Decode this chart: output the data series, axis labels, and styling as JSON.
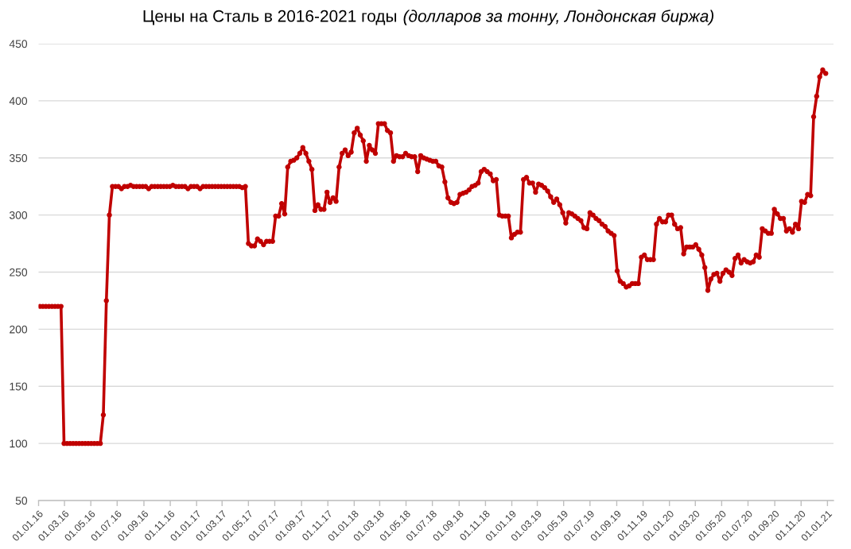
{
  "chart_data": {
    "type": "line",
    "title": "Цены на Сталь в 2016-2021 годы",
    "subtitle": "(долларов за тонну, Лондонская биржа)",
    "x": [
      "2016-01-04",
      "2016-01-11",
      "2016-01-18",
      "2016-01-25",
      "2016-02-01",
      "2016-02-08",
      "2016-02-15",
      "2016-02-22",
      "2016-02-29",
      "2016-03-07",
      "2016-03-14",
      "2016-03-21",
      "2016-03-28",
      "2016-04-04",
      "2016-04-11",
      "2016-04-18",
      "2016-04-25",
      "2016-05-02",
      "2016-05-09",
      "2016-05-16",
      "2016-05-23",
      "2016-05-30",
      "2016-06-06",
      "2016-06-13",
      "2016-06-20",
      "2016-06-27",
      "2016-07-04",
      "2016-07-11",
      "2016-07-18",
      "2016-07-25",
      "2016-08-01",
      "2016-08-08",
      "2016-08-15",
      "2016-08-22",
      "2016-08-29",
      "2016-09-05",
      "2016-09-12",
      "2016-09-19",
      "2016-09-26",
      "2016-10-03",
      "2016-10-10",
      "2016-10-17",
      "2016-10-24",
      "2016-10-31",
      "2016-11-07",
      "2016-11-14",
      "2016-11-21",
      "2016-11-28",
      "2016-12-05",
      "2016-12-12",
      "2016-12-19",
      "2016-12-26",
      "2017-01-02",
      "2017-01-09",
      "2017-01-16",
      "2017-01-23",
      "2017-01-30",
      "2017-02-06",
      "2017-02-13",
      "2017-02-20",
      "2017-02-27",
      "2017-03-06",
      "2017-03-13",
      "2017-03-20",
      "2017-03-27",
      "2017-04-03",
      "2017-04-10",
      "2017-04-17",
      "2017-04-24",
      "2017-05-01",
      "2017-05-08",
      "2017-05-15",
      "2017-05-22",
      "2017-05-29",
      "2017-06-05",
      "2017-06-12",
      "2017-06-19",
      "2017-06-26",
      "2017-07-03",
      "2017-07-10",
      "2017-07-17",
      "2017-07-24",
      "2017-07-31",
      "2017-08-07",
      "2017-08-14",
      "2017-08-21",
      "2017-08-28",
      "2017-09-04",
      "2017-09-11",
      "2017-09-18",
      "2017-09-25",
      "2017-10-02",
      "2017-10-09",
      "2017-10-16",
      "2017-10-23",
      "2017-10-30",
      "2017-11-06",
      "2017-11-13",
      "2017-11-20",
      "2017-11-27",
      "2017-12-04",
      "2017-12-11",
      "2017-12-18",
      "2017-12-25",
      "2018-01-01",
      "2018-01-08",
      "2018-01-15",
      "2018-01-22",
      "2018-01-29",
      "2018-02-05",
      "2018-02-12",
      "2018-02-19",
      "2018-02-26",
      "2018-03-05",
      "2018-03-12",
      "2018-03-19",
      "2018-03-26",
      "2018-04-02",
      "2018-04-09",
      "2018-04-16",
      "2018-04-23",
      "2018-04-30",
      "2018-05-07",
      "2018-05-14",
      "2018-05-21",
      "2018-05-28",
      "2018-06-04",
      "2018-06-11",
      "2018-06-18",
      "2018-06-25",
      "2018-07-02",
      "2018-07-09",
      "2018-07-16",
      "2018-07-23",
      "2018-07-30",
      "2018-08-06",
      "2018-08-13",
      "2018-08-20",
      "2018-08-27",
      "2018-09-03",
      "2018-09-10",
      "2018-09-17",
      "2018-09-24",
      "2018-10-01",
      "2018-10-08",
      "2018-10-15",
      "2018-10-22",
      "2018-10-29",
      "2018-11-05",
      "2018-11-12",
      "2018-11-19",
      "2018-11-26",
      "2018-12-03",
      "2018-12-10",
      "2018-12-17",
      "2018-12-24",
      "2018-12-31",
      "2019-01-07",
      "2019-01-14",
      "2019-01-21",
      "2019-01-28",
      "2019-02-04",
      "2019-02-11",
      "2019-02-18",
      "2019-02-25",
      "2019-03-04",
      "2019-03-11",
      "2019-03-18",
      "2019-03-25",
      "2019-04-01",
      "2019-04-08",
      "2019-04-15",
      "2019-04-22",
      "2019-04-29",
      "2019-05-06",
      "2019-05-13",
      "2019-05-20",
      "2019-05-27",
      "2019-06-03",
      "2019-06-10",
      "2019-06-17",
      "2019-06-24",
      "2019-07-01",
      "2019-07-08",
      "2019-07-15",
      "2019-07-22",
      "2019-07-29",
      "2019-08-05",
      "2019-08-12",
      "2019-08-19",
      "2019-08-26",
      "2019-09-02",
      "2019-09-09",
      "2019-09-16",
      "2019-09-23",
      "2019-09-30",
      "2019-10-07",
      "2019-10-14",
      "2019-10-21",
      "2019-10-28",
      "2019-11-04",
      "2019-11-11",
      "2019-11-18",
      "2019-11-25",
      "2019-12-02",
      "2019-12-09",
      "2019-12-16",
      "2019-12-23",
      "2019-12-30",
      "2020-01-06",
      "2020-01-13",
      "2020-01-20",
      "2020-01-27",
      "2020-02-03",
      "2020-02-10",
      "2020-02-17",
      "2020-02-24",
      "2020-03-02",
      "2020-03-09",
      "2020-03-16",
      "2020-03-23",
      "2020-03-30",
      "2020-04-06",
      "2020-04-13",
      "2020-04-20",
      "2020-04-27",
      "2020-05-04",
      "2020-05-11",
      "2020-05-18",
      "2020-05-25",
      "2020-06-01",
      "2020-06-08",
      "2020-06-15",
      "2020-06-22",
      "2020-06-29",
      "2020-07-06",
      "2020-07-13",
      "2020-07-20",
      "2020-07-27",
      "2020-08-03",
      "2020-08-10",
      "2020-08-17",
      "2020-08-24",
      "2020-08-31",
      "2020-09-07",
      "2020-09-14",
      "2020-09-21",
      "2020-09-28",
      "2020-10-05",
      "2020-10-12",
      "2020-10-19",
      "2020-10-26",
      "2020-11-02",
      "2020-11-09",
      "2020-11-16",
      "2020-11-23",
      "2020-11-30",
      "2020-12-07",
      "2020-12-14",
      "2020-12-21",
      "2020-12-28"
    ],
    "series": [
      {
        "color": "#c00000",
        "values": [
          220,
          220,
          220,
          220,
          220,
          220,
          220,
          220,
          100,
          100,
          100,
          100,
          100,
          100,
          100,
          100,
          100,
          100,
          100,
          100,
          100,
          125,
          225,
          300,
          325,
          325,
          325,
          323,
          325,
          325,
          326,
          325,
          325,
          325,
          325,
          325,
          323,
          325,
          325,
          325,
          325,
          325,
          325,
          325,
          326,
          325,
          325,
          325,
          325,
          323,
          325,
          325,
          325,
          323,
          325,
          325,
          325,
          325,
          325,
          325,
          325,
          325,
          325,
          325,
          325,
          325,
          325,
          324,
          325,
          275,
          273,
          273,
          279,
          277,
          274,
          277,
          277,
          277,
          299,
          299,
          310,
          301,
          342,
          347,
          348,
          350,
          354,
          359,
          354,
          347,
          340,
          304,
          309,
          305,
          305,
          320,
          311,
          315,
          312,
          342,
          354,
          357,
          352,
          355,
          372,
          376,
          370,
          365,
          347,
          361,
          357,
          354,
          380,
          380,
          380,
          374,
          372,
          347,
          352,
          351,
          351,
          354,
          352,
          351,
          351,
          338,
          352,
          350,
          349,
          348,
          347,
          347,
          343,
          342,
          329,
          315,
          311,
          310,
          311,
          318,
          319,
          320,
          322,
          325,
          326,
          328,
          338,
          340,
          338,
          336,
          330,
          331,
          300,
          299,
          299,
          299,
          280,
          283,
          285,
          285,
          331,
          333,
          328,
          328,
          320,
          327,
          326,
          324,
          321,
          316,
          311,
          314,
          309,
          302,
          293,
          302,
          301,
          299,
          297,
          295,
          289,
          288,
          302,
          300,
          297,
          295,
          292,
          290,
          286,
          284,
          282,
          251,
          242,
          240,
          237,
          238,
          240,
          240,
          240,
          263,
          265,
          261,
          261,
          261,
          292,
          297,
          294,
          294,
          300,
          300,
          292,
          288,
          289,
          266,
          272,
          272,
          272,
          274,
          270,
          265,
          254,
          234,
          244,
          248,
          249,
          242,
          249,
          252,
          250,
          247,
          262,
          265,
          258,
          261,
          259,
          258,
          259,
          265,
          263,
          288,
          286,
          284,
          284,
          305,
          301,
          297,
          297,
          286,
          288,
          285,
          292,
          288,
          312,
          311,
          318,
          317,
          386,
          404,
          421,
          427,
          424
        ]
      }
    ],
    "xlim": [
      "2016-01-01",
      "2021-01-15"
    ],
    "xticks": [
      {
        "value": "2016-01-01",
        "label": "01.01.16"
      },
      {
        "value": "2016-03-01",
        "label": "01.03.16"
      },
      {
        "value": "2016-05-01",
        "label": "01.05.16"
      },
      {
        "value": "2016-07-01",
        "label": "01.07.16"
      },
      {
        "value": "2016-09-01",
        "label": "01.09.16"
      },
      {
        "value": "2016-11-01",
        "label": "01.11.16"
      },
      {
        "value": "2017-01-01",
        "label": "01.01.17"
      },
      {
        "value": "2017-03-01",
        "label": "01.03.17"
      },
      {
        "value": "2017-05-01",
        "label": "01.05.17"
      },
      {
        "value": "2017-07-01",
        "label": "01.07.17"
      },
      {
        "value": "2017-09-01",
        "label": "01.09.17"
      },
      {
        "value": "2017-11-01",
        "label": "01.11.17"
      },
      {
        "value": "2018-01-01",
        "label": "01.01.18"
      },
      {
        "value": "2018-03-01",
        "label": "01.03.18"
      },
      {
        "value": "2018-05-01",
        "label": "01.05.18"
      },
      {
        "value": "2018-07-01",
        "label": "01.07.18"
      },
      {
        "value": "2018-09-01",
        "label": "01.09.18"
      },
      {
        "value": "2018-11-01",
        "label": "01.11.18"
      },
      {
        "value": "2019-01-01",
        "label": "01.01.19"
      },
      {
        "value": "2019-03-01",
        "label": "01.03.19"
      },
      {
        "value": "2019-05-01",
        "label": "01.05.19"
      },
      {
        "value": "2019-07-01",
        "label": "01.07.19"
      },
      {
        "value": "2019-09-01",
        "label": "01.09.19"
      },
      {
        "value": "2019-11-01",
        "label": "01.11.19"
      },
      {
        "value": "2020-01-01",
        "label": "01.01.20"
      },
      {
        "value": "2020-03-01",
        "label": "01.03.20"
      },
      {
        "value": "2020-05-01",
        "label": "01.05.20"
      },
      {
        "value": "2020-07-01",
        "label": "01.07.20"
      },
      {
        "value": "2020-09-01",
        "label": "01.09.20"
      },
      {
        "value": "2020-11-01",
        "label": "01.11.20"
      },
      {
        "value": "2021-01-01",
        "label": "01.01.21"
      }
    ],
    "ylim": [
      50,
      450
    ],
    "yticks": [
      50,
      100,
      150,
      200,
      250,
      300,
      350,
      400,
      450
    ],
    "grid": "y",
    "marker": "circle",
    "line_style": "solid"
  }
}
